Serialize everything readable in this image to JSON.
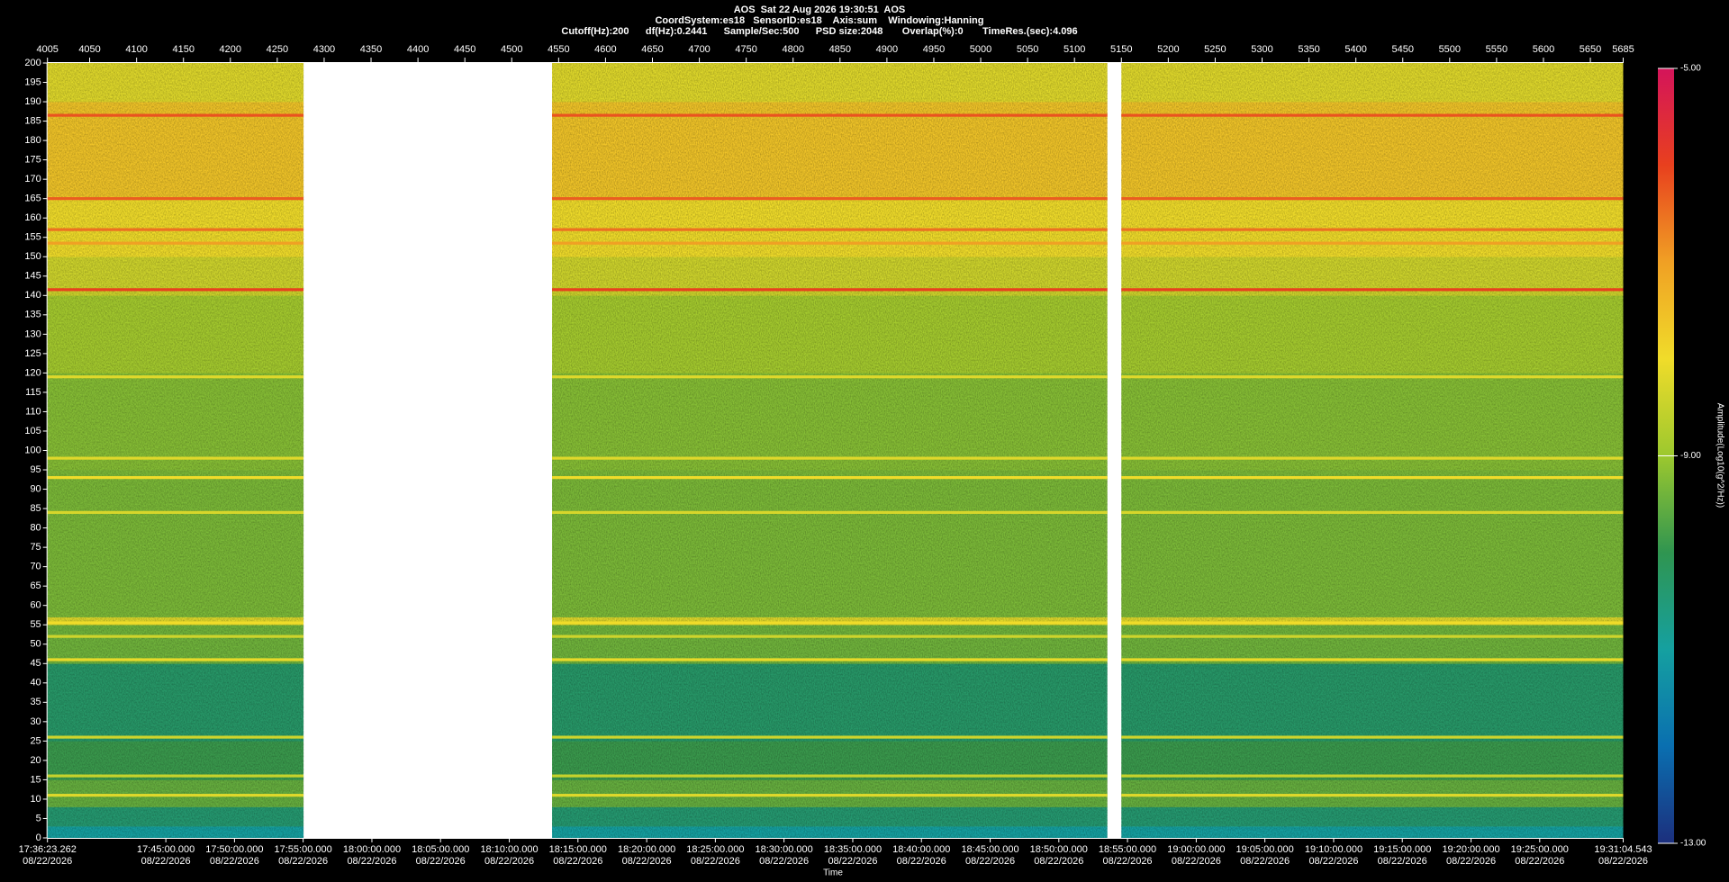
{
  "chart_data": {
    "type": "spectrogram",
    "title": "AOS  Sat 22 Aug 2026 19:30:51  AOS",
    "subtitle": [
      "CoordSystem:es18   SensorID:es18    Axis:sum    Windowing:Hanning",
      "Cutoff(Hz):200      df(Hz):0.2441      Sample/Sec:500      PSD size:2048       Overlap(%):0       TimeRes.(sec):4.096"
    ],
    "x_label": "Time",
    "colorbar_label": "Amplitude(Log10(g^2/Hz))",
    "xlim": [
      4005,
      5685
    ],
    "xticks": [
      4005,
      4050,
      4100,
      4150,
      4200,
      4250,
      4300,
      4350,
      4400,
      4450,
      4500,
      4550,
      4600,
      4650,
      4700,
      4750,
      4800,
      4850,
      4900,
      4950,
      5000,
      5050,
      5100,
      5150,
      5200,
      5250,
      5300,
      5350,
      5400,
      5450,
      5500,
      5550,
      5600,
      5650,
      5685
    ],
    "time_ticks": [
      {
        "value": 4005,
        "label": "17:36:23.262"
      },
      {
        "value": 4131.2,
        "label": "17:45:00.000"
      },
      {
        "value": 4204.4,
        "label": "17:50:00.000"
      },
      {
        "value": 4277.6,
        "label": "17:55:00.000"
      },
      {
        "value": 4350.9,
        "label": "18:00:00.000"
      },
      {
        "value": 4424.1,
        "label": "18:05:00.000"
      },
      {
        "value": 4497.4,
        "label": "18:10:00.000"
      },
      {
        "value": 4570.6,
        "label": "18:15:00.000"
      },
      {
        "value": 4643.9,
        "label": "18:20:00.000"
      },
      {
        "value": 4717.1,
        "label": "18:25:00.000"
      },
      {
        "value": 4790.3,
        "label": "18:30:00.000"
      },
      {
        "value": 4863.6,
        "label": "18:35:00.000"
      },
      {
        "value": 4936.8,
        "label": "18:40:00.000"
      },
      {
        "value": 5010.1,
        "label": "18:45:00.000"
      },
      {
        "value": 5083.3,
        "label": "18:50:00.000"
      },
      {
        "value": 5156.5,
        "label": "18:55:00.000"
      },
      {
        "value": 5229.8,
        "label": "19:00:00.000"
      },
      {
        "value": 5303.0,
        "label": "19:05:00.000"
      },
      {
        "value": 5376.3,
        "label": "19:10:00.000"
      },
      {
        "value": 5449.5,
        "label": "19:15:00.000"
      },
      {
        "value": 5522.8,
        "label": "19:20:00.000"
      },
      {
        "value": 5596.0,
        "label": "19:25:00.000"
      },
      {
        "value": 5685,
        "label": "19:31:04.543"
      }
    ],
    "time_tick_dates": [
      "08/22/2026",
      "08/22/2026",
      "08/22/2026",
      "08/22/2026",
      "08/22/2026",
      "08/22/2026",
      "08/22/2026",
      "08/22/2026",
      "08/22/2026",
      "08/22/2026",
      "08/22/2026",
      "08/22/2026",
      "08/22/2026",
      "08/22/2026",
      "08/22/2026",
      "08/22/2026",
      "08/22/2026",
      "08/22/2026",
      "08/22/2026",
      "08/22/2026",
      "08/22/2026",
      "08/22/2026",
      "08/22/2026"
    ],
    "ylim": [
      0,
      200
    ],
    "yticks": [
      0,
      5,
      10,
      15,
      20,
      25,
      30,
      35,
      40,
      45,
      50,
      55,
      60,
      65,
      70,
      75,
      80,
      85,
      90,
      95,
      100,
      105,
      110,
      115,
      120,
      125,
      130,
      135,
      140,
      145,
      150,
      155,
      160,
      165,
      170,
      175,
      180,
      185,
      190,
      195,
      200
    ],
    "segments": [
      [
        4005,
        4278
      ],
      [
        4543,
        5135
      ],
      [
        5150,
        5685
      ]
    ],
    "band_edges": [
      0,
      3,
      8,
      15,
      25,
      45,
      55,
      57,
      95,
      120,
      140,
      150,
      165,
      190,
      200
    ],
    "band_levels": [
      -11.0,
      -10.4,
      -9.5,
      -9.9,
      -10.3,
      -9.4,
      -8.2,
      -9.3,
      -9.2,
      -8.9,
      -8.4,
      -8.0,
      -7.6,
      -8.2
    ],
    "tone_freqs": [
      186.5,
      165,
      157,
      153.5,
      141.5,
      119,
      98,
      93,
      84,
      55.5,
      52,
      46,
      26,
      16,
      11
    ],
    "tone_levels": [
      -6.2,
      -6.3,
      -6.5,
      -7.0,
      -6.0,
      -8.2,
      -8.2,
      -8.0,
      -8.3,
      -8.0,
      -8.4,
      -8.1,
      -8.4,
      -8.5,
      -8.2
    ],
    "clim": [
      -13,
      -5
    ],
    "cticks": [
      {
        "value": -5,
        "label": "-5.00"
      },
      {
        "value": -9,
        "label": "-9.00"
      },
      {
        "value": -13,
        "label": "-13.00"
      }
    ],
    "colormap": [
      "#1c2f7d",
      "#0a6fb0",
      "#15a0a0",
      "#2f9550",
      "#9cc82e",
      "#f0dc2a",
      "#f0a024",
      "#e8401e",
      "#d4145a"
    ]
  }
}
